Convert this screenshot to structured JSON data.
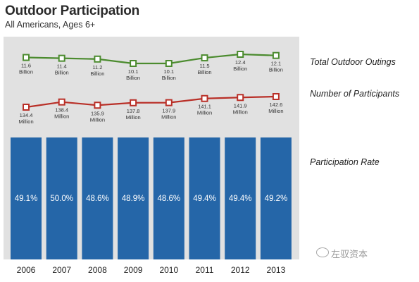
{
  "header": {
    "title": "Outdoor Participation",
    "subtitle": "All Americans, Ages 6+"
  },
  "watermark": "左驭资本",
  "chart_data": {
    "type": "bar",
    "categories": [
      "2006",
      "2007",
      "2008",
      "2009",
      "2010",
      "2011",
      "2012",
      "2013"
    ],
    "series": [
      {
        "name": "Total Outdoor Outings",
        "type": "line",
        "values": [
          11.6,
          11.4,
          11.2,
          10.1,
          10.1,
          11.5,
          12.4,
          12.1
        ],
        "labels": [
          "11.6",
          "11.4",
          "11.2",
          "10.1",
          "10.1",
          "11.5",
          "12.4",
          "12.1"
        ],
        "unit": "Billion",
        "color": "#4b8b2e"
      },
      {
        "name": "Number of Participants",
        "type": "line",
        "values": [
          134.4,
          138.4,
          135.9,
          137.8,
          137.9,
          141.1,
          141.9,
          142.6
        ],
        "labels": [
          "134.4",
          "138.4",
          "135.9",
          "137.8",
          "137.9",
          "141.1",
          "141.9",
          "142.6"
        ],
        "unit": "Million",
        "color": "#b92f27"
      },
      {
        "name": "Participation Rate",
        "type": "bar",
        "values": [
          49.1,
          50.0,
          48.6,
          48.9,
          48.6,
          49.4,
          49.4,
          49.2
        ],
        "labels": [
          "49.1%",
          "50.0%",
          "48.6%",
          "48.9%",
          "48.6%",
          "49.4%",
          "49.4%",
          "49.2%"
        ],
        "color": "#2566a8"
      }
    ],
    "legend_position": "right"
  }
}
